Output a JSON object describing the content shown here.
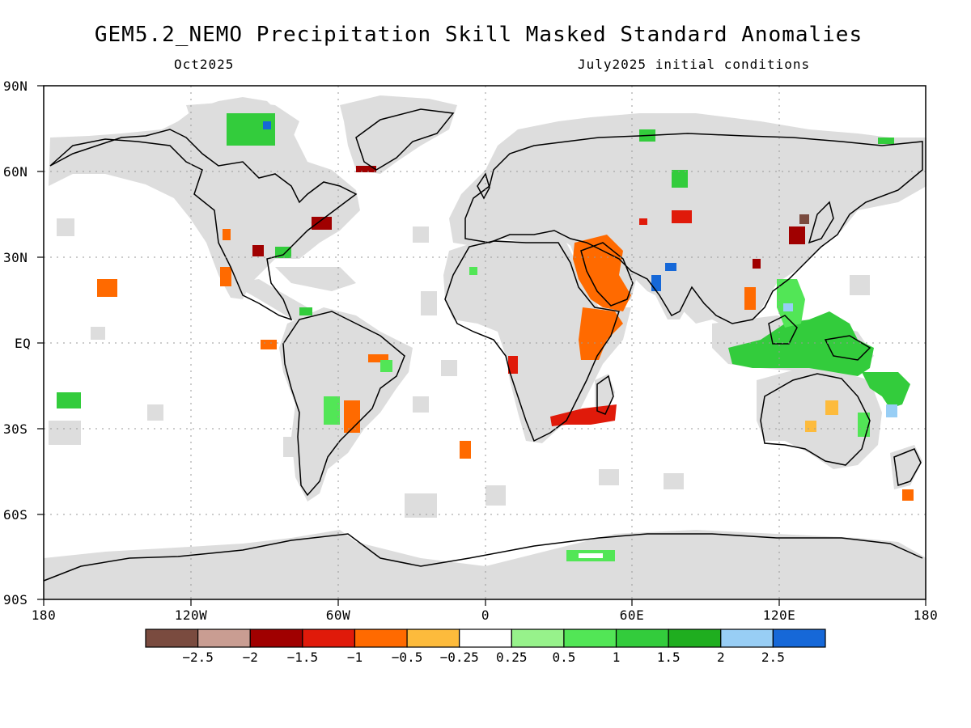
{
  "title": "GEM5.2_NEMO Precipitation Skill Masked Standard Anomalies",
  "subtitle_left": "Oct2025",
  "subtitle_right": "July2025 initial conditions",
  "lat_labels": [
    "90N",
    "60N",
    "30N",
    "EQ",
    "30S",
    "60S",
    "90S"
  ],
  "lon_labels": [
    "180",
    "120W",
    "60W",
    "0",
    "60E",
    "120E",
    "180"
  ],
  "colorbar": {
    "colors": [
      "#7a4b3f",
      "#c99d92",
      "#a00000",
      "#e01a0a",
      "#ff6a00",
      "#fdbb3c",
      "#ffffff",
      "#97f28b",
      "#52e656",
      "#33cc3c",
      "#1fae1f",
      "#98cef5",
      "#1668d8"
    ],
    "labels": [
      "−2.5",
      "−2",
      "−1.5",
      "−1",
      "−0.5",
      "−0.25",
      "0.25",
      "0.5",
      "1",
      "1.5",
      "2",
      "2.5"
    ]
  },
  "colors": {
    "mask": "#dddddd",
    "ocean": "#ffffff",
    "coast": "#000000",
    "grid": "#999999"
  }
}
